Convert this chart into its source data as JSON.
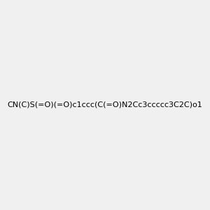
{
  "smiles": "CN(C)S(=O)(=O)c1ccc(C(=O)N2Cc3ccccc3C2C)o1",
  "image_size": 300,
  "background_color": "#f0f0f0",
  "atom_colors": {
    "N": "blue",
    "O": "red",
    "S": "yellow"
  }
}
